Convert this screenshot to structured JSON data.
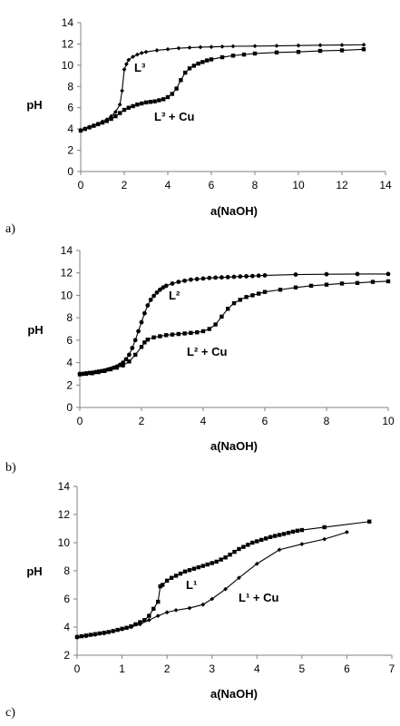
{
  "chart_data": [
    {
      "type": "line",
      "panel_label": "a)",
      "xlabel": "a(NaOH)",
      "ylabel": "pH",
      "xlim": [
        0,
        14
      ],
      "ylim": [
        0,
        14
      ],
      "xticks": [
        "0",
        "2",
        "4",
        "6",
        "8",
        "10",
        "12",
        "14"
      ],
      "yticks": [
        "0",
        "2",
        "4",
        "6",
        "8",
        "10",
        "12",
        "14"
      ],
      "series": [
        {
          "name": "L³",
          "marker": "diamond",
          "points": [
            [
              0,
              3.9
            ],
            [
              0.2,
              4.05
            ],
            [
              0.4,
              4.2
            ],
            [
              0.6,
              4.35
            ],
            [
              0.8,
              4.5
            ],
            [
              1.0,
              4.7
            ],
            [
              1.2,
              4.9
            ],
            [
              1.4,
              5.2
            ],
            [
              1.6,
              5.6
            ],
            [
              1.8,
              6.3
            ],
            [
              1.9,
              7.6
            ],
            [
              2.0,
              9.6
            ],
            [
              2.1,
              10.1
            ],
            [
              2.2,
              10.5
            ],
            [
              2.4,
              10.8
            ],
            [
              2.6,
              11.0
            ],
            [
              2.8,
              11.15
            ],
            [
              3,
              11.25
            ],
            [
              3.5,
              11.4
            ],
            [
              4,
              11.5
            ],
            [
              4.5,
              11.6
            ],
            [
              5,
              11.65
            ],
            [
              5.5,
              11.7
            ],
            [
              6,
              11.72
            ],
            [
              6.5,
              11.75
            ],
            [
              7,
              11.78
            ],
            [
              8,
              11.8
            ],
            [
              9,
              11.82
            ],
            [
              10,
              11.85
            ],
            [
              11,
              11.88
            ],
            [
              12,
              11.9
            ],
            [
              13,
              11.92
            ]
          ]
        },
        {
          "name": "L³ + Cu",
          "marker": "square",
          "points": [
            [
              0,
              3.85
            ],
            [
              0.2,
              4.0
            ],
            [
              0.4,
              4.15
            ],
            [
              0.6,
              4.3
            ],
            [
              0.8,
              4.45
            ],
            [
              1.0,
              4.6
            ],
            [
              1.2,
              4.75
            ],
            [
              1.4,
              4.95
            ],
            [
              1.6,
              5.2
            ],
            [
              1.8,
              5.5
            ],
            [
              2.0,
              5.8
            ],
            [
              2.2,
              6.0
            ],
            [
              2.4,
              6.15
            ],
            [
              2.6,
              6.3
            ],
            [
              2.8,
              6.4
            ],
            [
              3,
              6.5
            ],
            [
              3.2,
              6.55
            ],
            [
              3.4,
              6.6
            ],
            [
              3.6,
              6.7
            ],
            [
              3.8,
              6.8
            ],
            [
              4,
              7.0
            ],
            [
              4.2,
              7.3
            ],
            [
              4.4,
              7.8
            ],
            [
              4.6,
              8.6
            ],
            [
              4.8,
              9.3
            ],
            [
              5.0,
              9.7
            ],
            [
              5.2,
              9.95
            ],
            [
              5.4,
              10.15
            ],
            [
              5.6,
              10.3
            ],
            [
              5.8,
              10.45
            ],
            [
              6,
              10.55
            ],
            [
              6.5,
              10.75
            ],
            [
              7,
              10.9
            ],
            [
              7.5,
              11.0
            ],
            [
              8,
              11.1
            ],
            [
              9,
              11.2
            ],
            [
              10,
              11.25
            ],
            [
              11,
              11.35
            ],
            [
              12,
              11.4
            ],
            [
              13,
              11.5
            ]
          ]
        }
      ],
      "annotations": [
        "L³",
        "L³ + Cu"
      ]
    },
    {
      "type": "line",
      "panel_label": "b)",
      "xlabel": "a(NaOH)",
      "ylabel": "pH",
      "xlim": [
        0,
        10
      ],
      "ylim": [
        0,
        14
      ],
      "xticks": [
        "0",
        "2",
        "4",
        "6",
        "8",
        "10"
      ],
      "yticks": [
        "0",
        "2",
        "4",
        "6",
        "8",
        "10",
        "12",
        "14"
      ],
      "series": [
        {
          "name": "L²",
          "marker": "circle",
          "points": [
            [
              0,
              3.0
            ],
            [
              0.1,
              3.0
            ],
            [
              0.2,
              3.05
            ],
            [
              0.3,
              3.08
            ],
            [
              0.4,
              3.1
            ],
            [
              0.5,
              3.15
            ],
            [
              0.6,
              3.2
            ],
            [
              0.7,
              3.25
            ],
            [
              0.8,
              3.3
            ],
            [
              0.9,
              3.38
            ],
            [
              1.0,
              3.45
            ],
            [
              1.1,
              3.55
            ],
            [
              1.2,
              3.65
            ],
            [
              1.3,
              3.8
            ],
            [
              1.4,
              4.0
            ],
            [
              1.5,
              4.3
            ],
            [
              1.6,
              4.7
            ],
            [
              1.7,
              5.3
            ],
            [
              1.8,
              6.0
            ],
            [
              1.9,
              6.8
            ],
            [
              2.0,
              7.6
            ],
            [
              2.1,
              8.4
            ],
            [
              2.2,
              9.1
            ],
            [
              2.3,
              9.6
            ],
            [
              2.4,
              9.95
            ],
            [
              2.5,
              10.25
            ],
            [
              2.6,
              10.5
            ],
            [
              2.7,
              10.7
            ],
            [
              2.8,
              10.85
            ],
            [
              3.0,
              11.05
            ],
            [
              3.2,
              11.2
            ],
            [
              3.4,
              11.3
            ],
            [
              3.6,
              11.4
            ],
            [
              3.8,
              11.45
            ],
            [
              4.0,
              11.5
            ],
            [
              4.2,
              11.55
            ],
            [
              4.4,
              11.58
            ],
            [
              4.6,
              11.6
            ],
            [
              4.8,
              11.62
            ],
            [
              5.0,
              11.65
            ],
            [
              5.2,
              11.68
            ],
            [
              5.4,
              11.7
            ],
            [
              5.6,
              11.72
            ],
            [
              5.8,
              11.75
            ],
            [
              6,
              11.78
            ],
            [
              7,
              11.85
            ],
            [
              8,
              11.88
            ],
            [
              9,
              11.9
            ],
            [
              10,
              11.9
            ]
          ]
        },
        {
          "name": "L² + Cu",
          "marker": "square",
          "points": [
            [
              0,
              2.95
            ],
            [
              0.2,
              3.0
            ],
            [
              0.4,
              3.05
            ],
            [
              0.6,
              3.15
            ],
            [
              0.8,
              3.25
            ],
            [
              1.0,
              3.4
            ],
            [
              1.2,
              3.55
            ],
            [
              1.4,
              3.75
            ],
            [
              1.6,
              4.1
            ],
            [
              1.8,
              4.7
            ],
            [
              2.0,
              5.4
            ],
            [
              2.1,
              5.8
            ],
            [
              2.2,
              6.05
            ],
            [
              2.4,
              6.25
            ],
            [
              2.6,
              6.35
            ],
            [
              2.8,
              6.45
            ],
            [
              3.0,
              6.5
            ],
            [
              3.2,
              6.55
            ],
            [
              3.4,
              6.6
            ],
            [
              3.6,
              6.65
            ],
            [
              3.8,
              6.7
            ],
            [
              4.0,
              6.8
            ],
            [
              4.2,
              7.0
            ],
            [
              4.4,
              7.4
            ],
            [
              4.6,
              8.1
            ],
            [
              4.8,
              8.8
            ],
            [
              5.0,
              9.3
            ],
            [
              5.2,
              9.6
            ],
            [
              5.4,
              9.85
            ],
            [
              5.6,
              10.0
            ],
            [
              5.8,
              10.15
            ],
            [
              6.0,
              10.3
            ],
            [
              6.5,
              10.5
            ],
            [
              7.0,
              10.7
            ],
            [
              7.5,
              10.85
            ],
            [
              8.0,
              10.95
            ],
            [
              8.5,
              11.05
            ],
            [
              9.0,
              11.1
            ],
            [
              9.5,
              11.2
            ],
            [
              10,
              11.25
            ]
          ]
        }
      ],
      "annotations": [
        "L²",
        "L² + Cu"
      ]
    },
    {
      "type": "line",
      "panel_label": "c)",
      "xlabel": "a(NaOH)",
      "ylabel": "pH",
      "xlim": [
        0,
        7
      ],
      "ylim": [
        2,
        14
      ],
      "xticks": [
        "0",
        "1",
        "2",
        "3",
        "4",
        "5",
        "6",
        "7"
      ],
      "yticks": [
        "2",
        "4",
        "6",
        "8",
        "10",
        "12",
        "14"
      ],
      "series": [
        {
          "name": "L¹",
          "marker": "square",
          "points": [
            [
              0,
              3.3
            ],
            [
              0.1,
              3.35
            ],
            [
              0.2,
              3.4
            ],
            [
              0.3,
              3.45
            ],
            [
              0.4,
              3.5
            ],
            [
              0.5,
              3.55
            ],
            [
              0.6,
              3.6
            ],
            [
              0.7,
              3.65
            ],
            [
              0.8,
              3.72
            ],
            [
              0.9,
              3.8
            ],
            [
              1.0,
              3.88
            ],
            [
              1.1,
              3.95
            ],
            [
              1.2,
              4.05
            ],
            [
              1.3,
              4.2
            ],
            [
              1.4,
              4.35
            ],
            [
              1.5,
              4.5
            ],
            [
              1.6,
              4.8
            ],
            [
              1.7,
              5.3
            ],
            [
              1.8,
              5.8
            ],
            [
              1.85,
              6.9
            ],
            [
              1.9,
              7.0
            ],
            [
              2.0,
              7.3
            ],
            [
              2.1,
              7.5
            ],
            [
              2.2,
              7.65
            ],
            [
              2.3,
              7.8
            ],
            [
              2.4,
              7.95
            ],
            [
              2.5,
              8.05
            ],
            [
              2.6,
              8.15
            ],
            [
              2.7,
              8.25
            ],
            [
              2.8,
              8.35
            ],
            [
              2.9,
              8.45
            ],
            [
              3.0,
              8.55
            ],
            [
              3.1,
              8.65
            ],
            [
              3.2,
              8.8
            ],
            [
              3.3,
              8.95
            ],
            [
              3.4,
              9.15
            ],
            [
              3.5,
              9.35
            ],
            [
              3.6,
              9.55
            ],
            [
              3.7,
              9.7
            ],
            [
              3.8,
              9.85
            ],
            [
              3.9,
              10.0
            ],
            [
              4.0,
              10.1
            ],
            [
              4.1,
              10.2
            ],
            [
              4.2,
              10.3
            ],
            [
              4.3,
              10.4
            ],
            [
              4.4,
              10.48
            ],
            [
              4.5,
              10.55
            ],
            [
              4.6,
              10.62
            ],
            [
              4.7,
              10.7
            ],
            [
              4.8,
              10.78
            ],
            [
              4.9,
              10.85
            ],
            [
              5.0,
              10.9
            ],
            [
              5.5,
              11.1
            ],
            [
              6.5,
              11.5
            ]
          ]
        },
        {
          "name": "L¹ + Cu",
          "marker": "diamond",
          "points": [
            [
              0,
              3.25
            ],
            [
              0.2,
              3.35
            ],
            [
              0.4,
              3.45
            ],
            [
              0.6,
              3.55
            ],
            [
              0.8,
              3.7
            ],
            [
              1.0,
              3.85
            ],
            [
              1.2,
              4.0
            ],
            [
              1.4,
              4.2
            ],
            [
              1.6,
              4.5
            ],
            [
              1.8,
              4.8
            ],
            [
              2.0,
              5.05
            ],
            [
              2.2,
              5.2
            ],
            [
              2.5,
              5.35
            ],
            [
              2.8,
              5.6
            ],
            [
              3.0,
              6.0
            ],
            [
              3.3,
              6.7
            ],
            [
              3.6,
              7.5
            ],
            [
              4.0,
              8.5
            ],
            [
              4.5,
              9.5
            ],
            [
              5.0,
              9.9
            ],
            [
              5.5,
              10.25
            ],
            [
              6.0,
              10.75
            ]
          ]
        }
      ],
      "annotations": [
        "L¹",
        "L¹ + Cu"
      ]
    }
  ]
}
